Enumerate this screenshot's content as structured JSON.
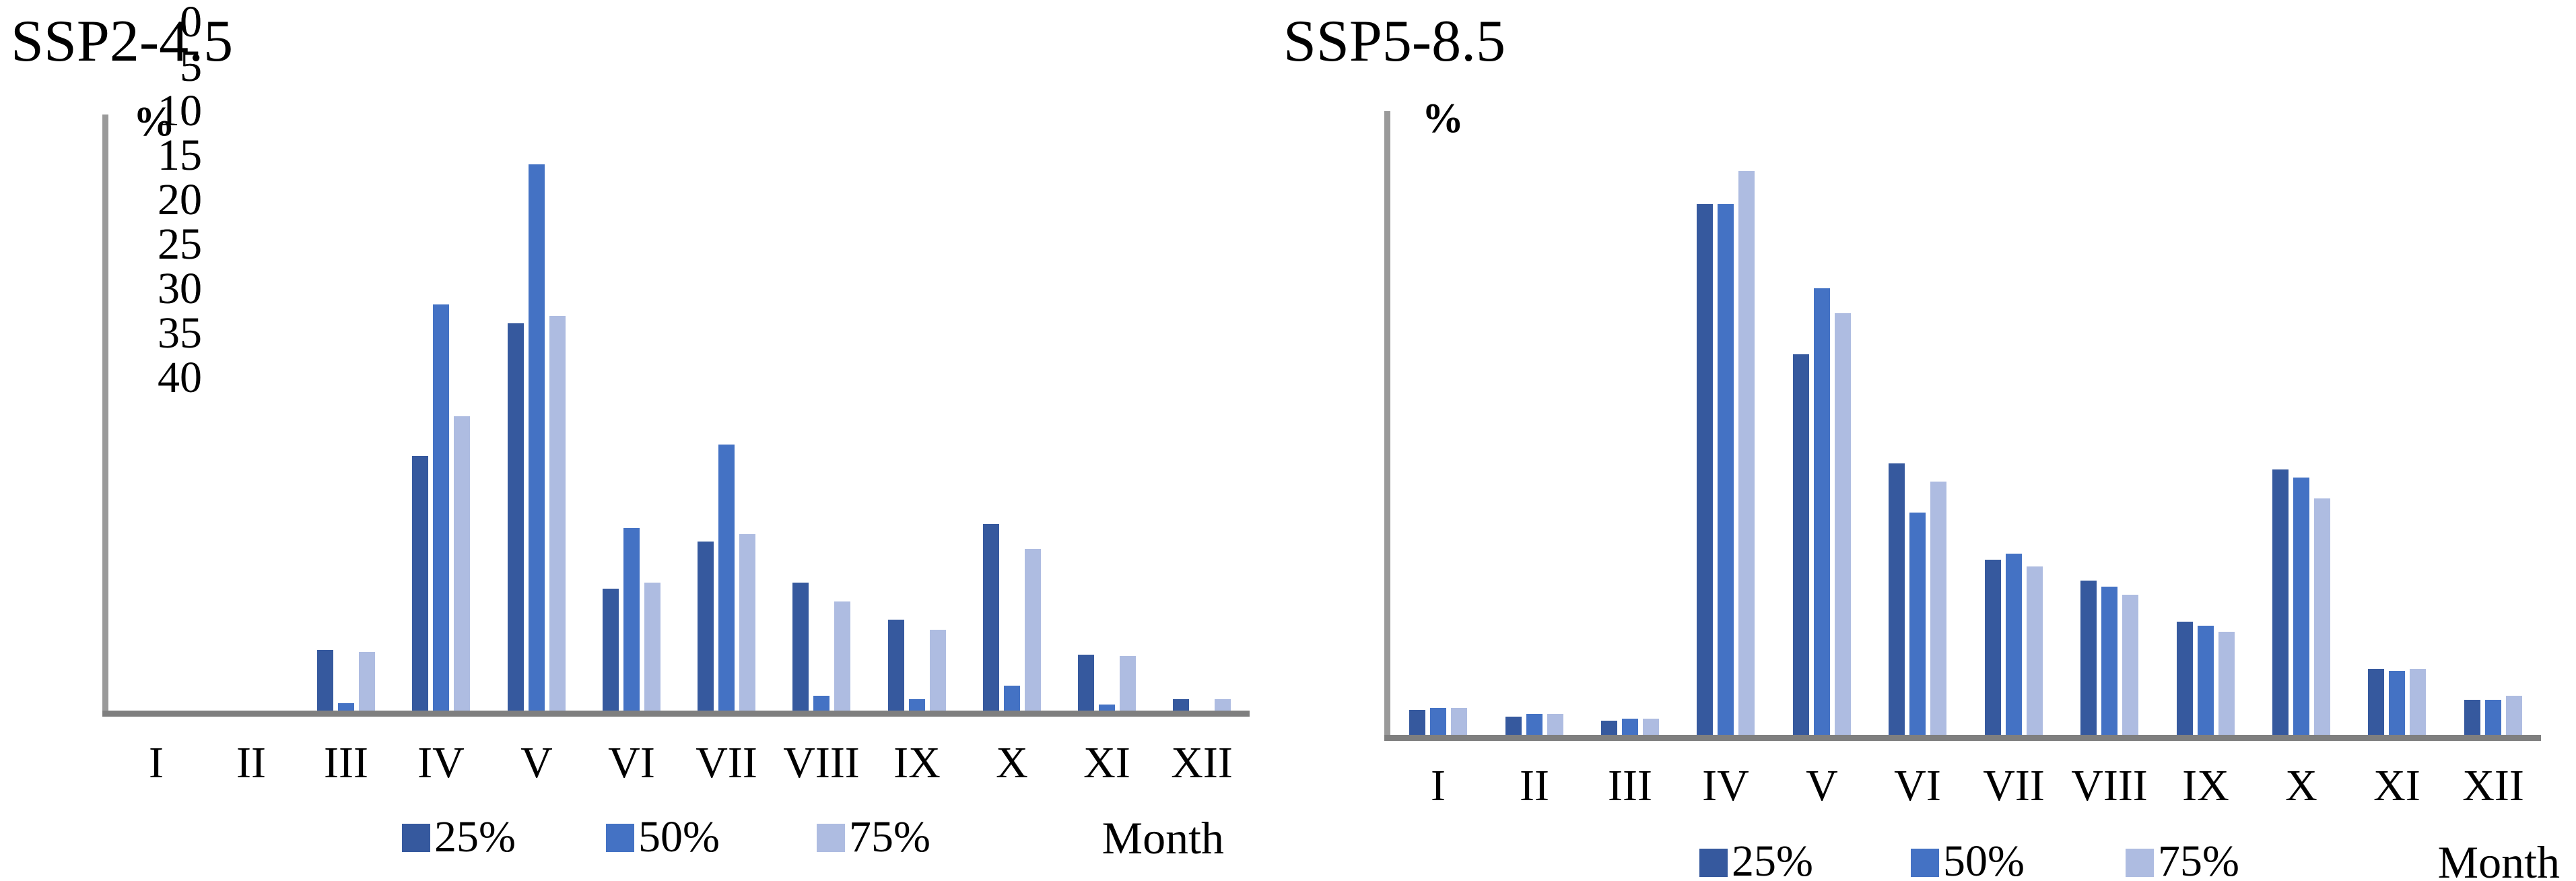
{
  "background": "#FFFFFF",
  "text_color": "#000000",
  "axis_color_x": "#7F7F7F",
  "axis_color_y": "#9A9A9A",
  "chart_data": [
    {
      "type": "bar",
      "title": "SSP2-4.5",
      "ylabel_symbol": "%",
      "xlabel": "Month",
      "categories": [
        "I",
        "II",
        "III",
        "IV",
        "V",
        "VI",
        "VII",
        "VIII",
        "IX",
        "X",
        "XI",
        "XII"
      ],
      "series": [
        {
          "name": "25%",
          "color": "#36599E",
          "values": [
            0,
            0,
            4.1,
            17.3,
            26.3,
            8.3,
            11.5,
            8.7,
            6.2,
            12.7,
            3.8,
            0.8
          ]
        },
        {
          "name": "50%",
          "color": "#4472C4",
          "values": [
            0,
            0,
            0.5,
            27.6,
            37.1,
            12.4,
            18.1,
            1.0,
            0.8,
            1.7,
            0.4,
            0
          ]
        },
        {
          "name": "75%",
          "color": "#AEBCE1",
          "values": [
            0,
            0,
            4.0,
            20.0,
            26.8,
            8.7,
            12.0,
            7.4,
            5.5,
            11.0,
            3.7,
            0.8
          ]
        }
      ],
      "ylim": [
        0,
        40
      ],
      "yticks": [
        0,
        5,
        10,
        15,
        20,
        25,
        30,
        35,
        40
      ],
      "grid": false,
      "legend_position": "bottom"
    },
    {
      "type": "bar",
      "title": "SSP5-8.5",
      "ylabel_symbol": "%",
      "xlabel": "Month",
      "categories": [
        "I",
        "II",
        "III",
        "IV",
        "V",
        "VI",
        "VII",
        "VIII",
        "IX",
        "X",
        "XI",
        "XII"
      ],
      "series": [
        {
          "name": "25%",
          "color": "#36599E",
          "values": [
            1.2,
            0.9,
            0.7,
            25.8,
            18.5,
            13.2,
            8.5,
            7.5,
            5.5,
            12.9,
            3.2,
            1.7
          ]
        },
        {
          "name": "50%",
          "color": "#4472C4",
          "values": [
            1.3,
            1.0,
            0.8,
            25.8,
            21.7,
            10.8,
            8.8,
            7.2,
            5.3,
            12.5,
            3.1,
            1.7
          ]
        },
        {
          "name": "75%",
          "color": "#AEBCE1",
          "values": [
            1.3,
            1.0,
            0.8,
            27.4,
            20.5,
            12.3,
            8.2,
            6.8,
            5.0,
            11.5,
            3.2,
            1.9
          ]
        }
      ],
      "ylim": [
        0,
        30
      ],
      "yticks": [
        0,
        5,
        10,
        15,
        20,
        25,
        30
      ],
      "grid": false,
      "legend_position": "bottom"
    }
  ]
}
